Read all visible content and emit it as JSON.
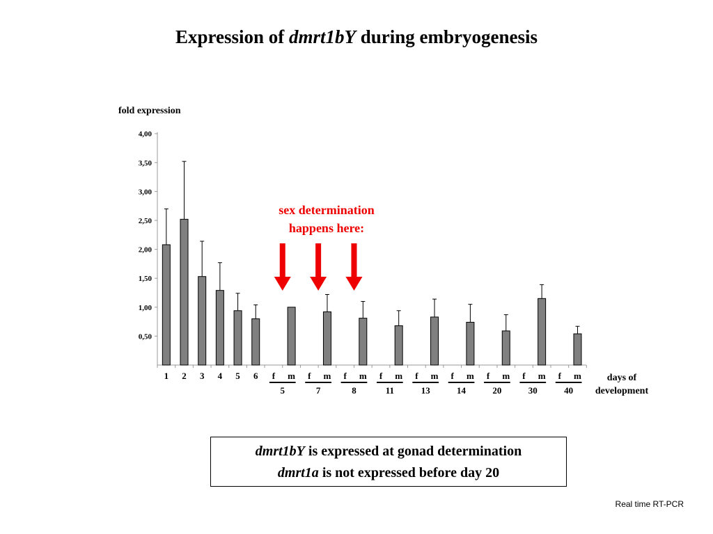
{
  "title": {
    "prefix": "Expression of ",
    "gene": "dmrt1bY",
    "suffix": " during embryogenesis"
  },
  "annotation": {
    "line1": "sex determination",
    "line2": "happens here:",
    "color": "#ee0000",
    "arrow_after_categories": [
      "5 f",
      "7 f",
      "8 f"
    ]
  },
  "summary": {
    "line1_gene": "dmrt1bY",
    "line1_text": " is expressed at gonad determination",
    "line2_gene": "dmrt1a",
    "line2_text": " is not expressed before day 20"
  },
  "source_note": "Real time RT-PCR",
  "chart_data": {
    "type": "bar",
    "ylabel": "fold expression",
    "xlabel_line1": "days of",
    "xlabel_line2": "development",
    "ylim": [
      0,
      4
    ],
    "yticks": [
      "0,50",
      "1,00",
      "1,50",
      "2,00",
      "2,50",
      "3,00",
      "3,50",
      "4,00"
    ],
    "ytick_values": [
      0.5,
      1.0,
      1.5,
      2.0,
      2.5,
      3.0,
      3.5,
      4.0
    ],
    "bar_color": "#808080",
    "categories": [
      "1",
      "2",
      "3",
      "4",
      "5",
      "6",
      "5 f",
      "5 m",
      "7 f",
      "7 m",
      "8 f",
      "8 m",
      "11 f",
      "11 m",
      "13 f",
      "13 m",
      "14 f",
      "14 m",
      "20 f",
      "20 m",
      "30 f",
      "30 m",
      "40 f",
      "40 m"
    ],
    "tick_labels": [
      "1",
      "2",
      "3",
      "4",
      "5",
      "6",
      "f",
      "m",
      "f",
      "m",
      "f",
      "m",
      "f",
      "m",
      "f",
      "m",
      "f",
      "m",
      "f",
      "m",
      "f",
      "m",
      "f",
      "m"
    ],
    "values": [
      2.08,
      2.52,
      1.53,
      1.29,
      0.94,
      0.8,
      null,
      1.0,
      null,
      0.92,
      null,
      0.81,
      null,
      0.68,
      null,
      0.83,
      null,
      0.74,
      null,
      0.59,
      null,
      1.15,
      null,
      0.54
    ],
    "error_upper": [
      2.7,
      3.52,
      2.14,
      1.77,
      1.24,
      1.04,
      null,
      1.0,
      null,
      1.22,
      null,
      1.1,
      null,
      0.94,
      null,
      1.14,
      null,
      1.05,
      null,
      0.87,
      null,
      1.39,
      null,
      0.67
    ],
    "groups": [
      {
        "label": "5",
        "members": [
          "5 f",
          "5 m"
        ]
      },
      {
        "label": "7",
        "members": [
          "7 f",
          "7 m"
        ]
      },
      {
        "label": "8",
        "members": [
          "8 f",
          "8 m"
        ]
      },
      {
        "label": "11",
        "members": [
          "11 f",
          "11 m"
        ]
      },
      {
        "label": "13",
        "members": [
          "13 f",
          "13 m"
        ]
      },
      {
        "label": "14",
        "members": [
          "14 f",
          "14 m"
        ]
      },
      {
        "label": "20",
        "members": [
          "20 f",
          "20 m"
        ]
      },
      {
        "label": "30",
        "members": [
          "30 f",
          "30 m"
        ]
      },
      {
        "label": "40",
        "members": [
          "40 f",
          "40 m"
        ]
      }
    ]
  }
}
